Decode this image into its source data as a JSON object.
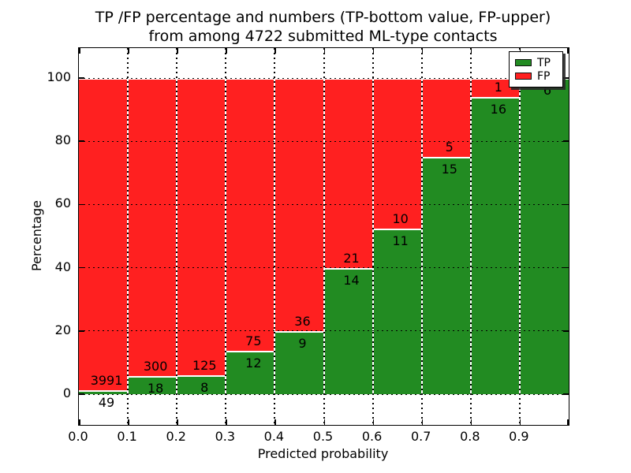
{
  "title": {
    "line1": "TP /FP percentage and numbers (TP-bottom value, FP-upper)",
    "line2": "from among 4722 submitted ML-type contacts"
  },
  "axes": {
    "xlabel": "Predicted probability",
    "ylabel": "Percentage",
    "xtick_labels": [
      "0.0",
      "0.1",
      "0.2",
      "0.3",
      "0.4",
      "0.5",
      "0.6",
      "0.7",
      "0.8",
      "0.9"
    ],
    "ytick_values": [
      0,
      20,
      40,
      60,
      80,
      100
    ],
    "ytick_labels": [
      "0",
      "20",
      "40",
      "60",
      "80",
      "100"
    ]
  },
  "legend": {
    "items": [
      {
        "label": "TP",
        "color": "#228b22"
      },
      {
        "label": "FP",
        "color": "#ff2020"
      }
    ],
    "position": "upper right"
  },
  "colors": {
    "tp": "#228b22",
    "fp": "#ff2020",
    "background": "#ffffff",
    "frame": "#000000",
    "bar_edge": "#ffffff"
  },
  "chart_data": {
    "type": "bar",
    "stacked": true,
    "normalized_to_percent": true,
    "title": "TP /FP percentage and numbers (TP-bottom value, FP-upper) from among 4722 submitted ML-type contacts",
    "xlabel": "Predicted probability",
    "ylabel": "Percentage",
    "x_bin_edges": [
      0.0,
      0.1,
      0.2,
      0.3,
      0.4,
      0.5,
      0.6,
      0.7,
      0.8,
      0.9,
      1.0
    ],
    "categories": [
      "0.0-0.1",
      "0.1-0.2",
      "0.2-0.3",
      "0.3-0.4",
      "0.4-0.5",
      "0.5-0.6",
      "0.6-0.7",
      "0.7-0.8",
      "0.8-0.9",
      "0.9-1.0"
    ],
    "series": [
      {
        "name": "TP",
        "color": "#228b22",
        "counts": [
          49,
          18,
          8,
          12,
          9,
          14,
          11,
          15,
          16,
          6
        ]
      },
      {
        "name": "FP",
        "color": "#ff2020",
        "counts": [
          3991,
          300,
          125,
          75,
          36,
          21,
          10,
          5,
          1,
          0
        ]
      }
    ],
    "tp_percent": [
      1.21,
      5.66,
      6.02,
      13.79,
      20.0,
      40.0,
      52.38,
      75.0,
      94.12,
      100.0
    ],
    "total_contacts": 4722,
    "xlim": [
      0.0,
      1.0
    ],
    "ylim": [
      -10,
      110
    ],
    "grid": "dotted",
    "legend_position": "upper right"
  }
}
